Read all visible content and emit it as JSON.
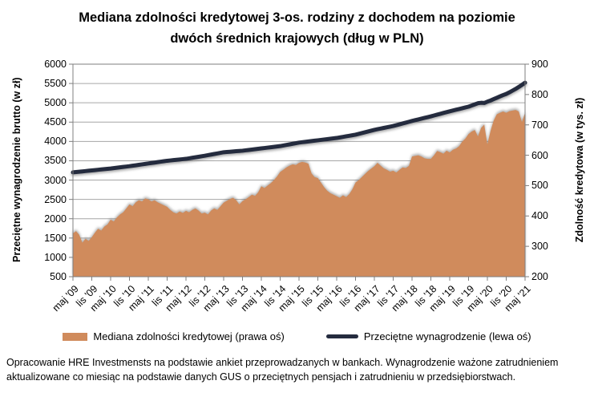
{
  "title": {
    "line1": "Mediana zdolności kredytowej 3-os. rodziny z dochodem na poziomie",
    "line2": "dwóch średnich krajowych (dług w PLN)"
  },
  "legend": {
    "items": [
      {
        "label": "Mediana zdolności kredytowej (prawa oś)",
        "swatch": "area",
        "color": "#d08b5c"
      },
      {
        "label": "Przeciętne wynagrodzenie (lewa oś)",
        "swatch": "line",
        "color": "#242b3e"
      }
    ]
  },
  "footnote": "Opracowanie HRE Investmensts na podstawie ankiet przeprowadzanych w bankach. Wynagrodzenie ważone zatrudnieniem aktualizowane co miesiąc na podstawie danych GUS o przeciętnych pensjach i zatrudnieniu w przedsiębiorstwach.",
  "chart_data": {
    "type": "area+line",
    "title": "Mediana zdolności kredytowej 3-os. rodziny z dochodem na poziomie dwóch średnich krajowych (dług w PLN)",
    "grid": true,
    "legend_position": "bottom",
    "colors": {
      "area": "#d08b5c",
      "line": "#242b3e",
      "grid": "#a6a6a6",
      "border": "#7f7f7f"
    },
    "left_axis": {
      "label": "Przeciętne wynagrodzenie brutto (w zł)",
      "ticks": [
        6000,
        5500,
        5000,
        4500,
        4000,
        3500,
        3000,
        2500,
        2000,
        1500,
        1000,
        500
      ],
      "ylim": [
        500,
        6000
      ]
    },
    "right_axis": {
      "label": "Zdolność kredytowa (w tys. zł)",
      "ticks": [
        900,
        800,
        700,
        600,
        500,
        400,
        300,
        200
      ],
      "ylim": [
        200,
        900
      ]
    },
    "x_tick_labels": [
      "maj '09",
      "lis '09",
      "maj '10",
      "lis '10",
      "maj '11",
      "lis '11",
      "maj '12",
      "lis '12",
      "maj '13",
      "lis '13",
      "maj '14",
      "lis '14",
      "maj '15",
      "lis '15",
      "maj '16",
      "lis '16",
      "maj '17",
      "lis '17",
      "maj '18",
      "lis '18",
      "maj '19",
      "lis '19",
      "maj '20",
      "lis '20",
      "maj '21"
    ],
    "x_frequency": "monthly",
    "x_range": [
      "maj 2009",
      "maj 2021"
    ],
    "series": [
      {
        "name": "Mediana zdolności kredytowej (prawa oś)",
        "type": "area",
        "axis": "right",
        "unit": "tys. zł",
        "color": "#d08b5c",
        "values": [
          343,
          350,
          338,
          312,
          325,
          318,
          330,
          345,
          358,
          352,
          365,
          372,
          388,
          382,
          395,
          405,
          412,
          425,
          438,
          432,
          445,
          452,
          448,
          458,
          455,
          448,
          452,
          445,
          440,
          435,
          430,
          420,
          412,
          408,
          415,
          410,
          417,
          412,
          420,
          425,
          418,
          408,
          411,
          405,
          418,
          425,
          420,
          432,
          444,
          450,
          456,
          460,
          452,
          438,
          449,
          455,
          462,
          470,
          466,
          478,
          498,
          492,
          500,
          508,
          518,
          530,
          545,
          552,
          560,
          566,
          570,
          568,
          575,
          578,
          576,
          572,
          540,
          528,
          525,
          510,
          495,
          483,
          475,
          470,
          465,
          460,
          468,
          462,
          472,
          488,
          510,
          518,
          528,
          538,
          548,
          556,
          564,
          575,
          566,
          557,
          552,
          546,
          549,
          543,
          552,
          560,
          558,
          565,
          596,
          598,
          600,
          596,
          590,
          588,
          588,
          600,
          614,
          610,
          605,
          615,
          609,
          618,
          622,
          630,
          645,
          655,
          670,
          678,
          683,
          662,
          690,
          701,
          636,
          680,
          714,
          735,
          740,
          744,
          740,
          745,
          747,
          749,
          744,
          709,
          740
        ]
      },
      {
        "name": "Przeciętne wynagrodzenie (lewa oś)",
        "type": "line",
        "axis": "left",
        "unit": "zł",
        "color": "#242b3e",
        "values": [
          3200,
          3208,
          3217,
          3225,
          3233,
          3242,
          3250,
          3258,
          3267,
          3275,
          3283,
          3292,
          3300,
          3310,
          3320,
          3330,
          3340,
          3350,
          3360,
          3372,
          3383,
          3395,
          3407,
          3418,
          3430,
          3442,
          3453,
          3465,
          3477,
          3488,
          3500,
          3508,
          3517,
          3525,
          3533,
          3542,
          3550,
          3563,
          3577,
          3590,
          3603,
          3617,
          3630,
          3645,
          3660,
          3675,
          3690,
          3705,
          3720,
          3727,
          3733,
          3740,
          3747,
          3753,
          3760,
          3770,
          3780,
          3790,
          3800,
          3810,
          3820,
          3830,
          3840,
          3850,
          3860,
          3870,
          3880,
          3895,
          3910,
          3925,
          3940,
          3955,
          3970,
          3980,
          3990,
          4000,
          4010,
          4020,
          4030,
          4040,
          4050,
          4060,
          4070,
          4080,
          4090,
          4104,
          4118,
          4133,
          4147,
          4161,
          4175,
          4196,
          4217,
          4238,
          4258,
          4279,
          4300,
          4317,
          4333,
          4350,
          4367,
          4383,
          4400,
          4422,
          4443,
          4465,
          4487,
          4508,
          4530,
          4550,
          4570,
          4590,
          4610,
          4630,
          4650,
          4672,
          4693,
          4715,
          4737,
          4758,
          4780,
          4800,
          4820,
          4840,
          4860,
          4880,
          4900,
          4930,
          4960,
          4990,
          5000,
          4995,
          5030,
          5060,
          5095,
          5130,
          5165,
          5200,
          5230,
          5270,
          5315,
          5360,
          5410,
          5465,
          5520
        ]
      }
    ]
  }
}
